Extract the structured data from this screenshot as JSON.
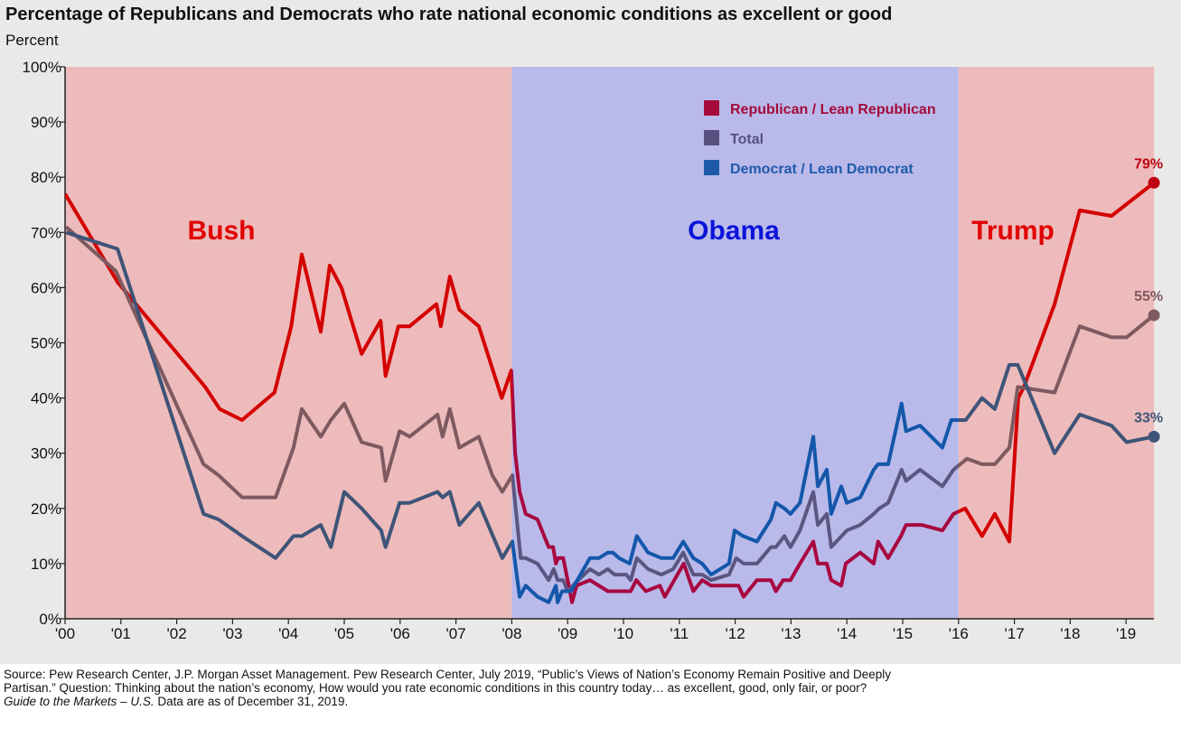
{
  "chart_data": {
    "type": "line",
    "title": "Percentage of Republicans and Democrats who rate national economic conditions as excellent or good",
    "ylabel": "Percent",
    "xlabel": "",
    "ylim": [
      0,
      100
    ],
    "xlim": [
      2000,
      2019.5
    ],
    "y_ticks": [
      "0%",
      "10%",
      "20%",
      "30%",
      "40%",
      "50%",
      "60%",
      "70%",
      "80%",
      "90%",
      "100%"
    ],
    "x_ticks": [
      "'00",
      "'01",
      "'02",
      "'03",
      "'04",
      "'05",
      "'06",
      "'07",
      "'08",
      "'09",
      "'10",
      "'11",
      "'12",
      "'13",
      "'14",
      "'15",
      "'16",
      "'17",
      "'18",
      "'19"
    ],
    "grid": false,
    "legend_placement": "top-center",
    "periods": [
      {
        "label": "Bush",
        "start": 2000,
        "end": 2008,
        "color": "#EDBBBB",
        "label_color": "#E00000"
      },
      {
        "label": "Obama",
        "start": 2008,
        "end": 2016,
        "color": "#B9BAEA",
        "label_color": "#0A14D8"
      },
      {
        "label": "Trump",
        "start": 2016,
        "end": 2019.5,
        "color": "#EDBBBB",
        "label_color": "#E00000"
      }
    ],
    "series": [
      {
        "name": "Republican  / Lean Republican",
        "legend_color": "#A50A3A",
        "color_red_period": "#D40000",
        "color_blue_period": "#A8073F",
        "end_label": "79%",
        "end_label_color": "#C00010",
        "points": [
          [
            2000.0,
            77
          ],
          [
            2000.94,
            61
          ],
          [
            2002.51,
            42
          ],
          [
            2002.77,
            38
          ],
          [
            2003.17,
            36
          ],
          [
            2003.75,
            41
          ],
          [
            2004.05,
            53
          ],
          [
            2004.24,
            66
          ],
          [
            2004.58,
            52
          ],
          [
            2004.74,
            64
          ],
          [
            2004.95,
            60
          ],
          [
            2005.31,
            48
          ],
          [
            2005.65,
            54
          ],
          [
            2005.74,
            44
          ],
          [
            2005.97,
            53
          ],
          [
            2006.17,
            53
          ],
          [
            2006.65,
            57
          ],
          [
            2006.73,
            53
          ],
          [
            2006.89,
            62
          ],
          [
            2007.06,
            56
          ],
          [
            2007.41,
            53
          ],
          [
            2007.82,
            40
          ],
          [
            2007.99,
            45
          ],
          [
            2008.06,
            30
          ],
          [
            2008.14,
            23
          ],
          [
            2008.25,
            19
          ],
          [
            2008.46,
            18
          ],
          [
            2008.66,
            13
          ],
          [
            2008.74,
            13
          ],
          [
            2008.79,
            10
          ],
          [
            2008.83,
            11
          ],
          [
            2008.92,
            11
          ],
          [
            2009.08,
            3
          ],
          [
            2009.16,
            6
          ],
          [
            2009.4,
            7
          ],
          [
            2009.72,
            5
          ],
          [
            2010.13,
            5
          ],
          [
            2010.23,
            7
          ],
          [
            2010.4,
            5
          ],
          [
            2010.65,
            6
          ],
          [
            2010.74,
            4
          ],
          [
            2011.08,
            10
          ],
          [
            2011.25,
            5
          ],
          [
            2011.41,
            7
          ],
          [
            2011.57,
            6
          ],
          [
            2012.06,
            6
          ],
          [
            2012.15,
            4
          ],
          [
            2012.39,
            7
          ],
          [
            2012.64,
            7
          ],
          [
            2012.73,
            5
          ],
          [
            2012.86,
            7
          ],
          [
            2012.99,
            7
          ],
          [
            2013.16,
            10
          ],
          [
            2013.4,
            14
          ],
          [
            2013.48,
            10
          ],
          [
            2013.64,
            10
          ],
          [
            2013.72,
            7
          ],
          [
            2013.9,
            6
          ],
          [
            2013.98,
            10
          ],
          [
            2014.24,
            12
          ],
          [
            2014.48,
            10
          ],
          [
            2014.56,
            14
          ],
          [
            2014.74,
            11
          ],
          [
            2014.97,
            15
          ],
          [
            2015.06,
            17
          ],
          [
            2015.34,
            17
          ],
          [
            2015.71,
            16
          ],
          [
            2015.91,
            19
          ],
          [
            2016.12,
            20
          ],
          [
            2016.42,
            15
          ],
          [
            2016.65,
            19
          ],
          [
            2016.91,
            14
          ],
          [
            2017.07,
            40
          ],
          [
            2017.17,
            42
          ],
          [
            2017.72,
            57
          ],
          [
            2018.17,
            74
          ],
          [
            2018.74,
            73
          ],
          [
            2019.5,
            79
          ]
        ]
      },
      {
        "name": "Total",
        "legend_color": "#57507E",
        "color_red_period": "#7E5A60",
        "color_blue_period": "#5B5580",
        "end_label": "55%",
        "end_label_color": "#7E5A60",
        "points": [
          [
            2000.02,
            71
          ],
          [
            2000.91,
            63
          ],
          [
            2002.48,
            28
          ],
          [
            2002.75,
            26
          ],
          [
            2003.17,
            22
          ],
          [
            2003.77,
            22
          ],
          [
            2004.09,
            31
          ],
          [
            2004.24,
            38
          ],
          [
            2004.58,
            33
          ],
          [
            2004.76,
            36
          ],
          [
            2005.0,
            39
          ],
          [
            2005.31,
            32
          ],
          [
            2005.66,
            31
          ],
          [
            2005.74,
            25
          ],
          [
            2005.99,
            34
          ],
          [
            2006.17,
            33
          ],
          [
            2006.67,
            37
          ],
          [
            2006.76,
            33
          ],
          [
            2006.89,
            38
          ],
          [
            2007.06,
            31
          ],
          [
            2007.41,
            33
          ],
          [
            2007.65,
            26
          ],
          [
            2007.83,
            23
          ],
          [
            2008.01,
            26
          ],
          [
            2008.16,
            11
          ],
          [
            2008.25,
            11
          ],
          [
            2008.46,
            10
          ],
          [
            2008.66,
            7
          ],
          [
            2008.75,
            9
          ],
          [
            2008.82,
            7
          ],
          [
            2008.92,
            7
          ],
          [
            2009.0,
            5
          ],
          [
            2009.19,
            7
          ],
          [
            2009.4,
            9
          ],
          [
            2009.56,
            8
          ],
          [
            2009.72,
            9
          ],
          [
            2009.84,
            8
          ],
          [
            2010.05,
            8
          ],
          [
            2010.13,
            7
          ],
          [
            2010.24,
            11
          ],
          [
            2010.44,
            9
          ],
          [
            2010.68,
            8
          ],
          [
            2010.89,
            9
          ],
          [
            2011.07,
            12
          ],
          [
            2011.25,
            8
          ],
          [
            2011.41,
            8
          ],
          [
            2011.57,
            7
          ],
          [
            2011.89,
            8
          ],
          [
            2012.02,
            11
          ],
          [
            2012.15,
            10
          ],
          [
            2012.39,
            10
          ],
          [
            2012.64,
            13
          ],
          [
            2012.73,
            13
          ],
          [
            2012.88,
            15
          ],
          [
            2012.99,
            13
          ],
          [
            2013.16,
            16
          ],
          [
            2013.4,
            23
          ],
          [
            2013.48,
            17
          ],
          [
            2013.64,
            19
          ],
          [
            2013.72,
            13
          ],
          [
            2014.0,
            16
          ],
          [
            2014.24,
            17
          ],
          [
            2014.48,
            19
          ],
          [
            2014.58,
            20
          ],
          [
            2014.74,
            21
          ],
          [
            2014.98,
            27
          ],
          [
            2015.06,
            25
          ],
          [
            2015.31,
            27
          ],
          [
            2015.71,
            24
          ],
          [
            2015.91,
            27
          ],
          [
            2016.15,
            29
          ],
          [
            2016.42,
            28
          ],
          [
            2016.65,
            28
          ],
          [
            2016.91,
            31
          ],
          [
            2017.06,
            42
          ],
          [
            2017.72,
            41
          ],
          [
            2018.17,
            53
          ],
          [
            2018.74,
            51
          ],
          [
            2019.01,
            51
          ],
          [
            2019.5,
            55
          ]
        ]
      },
      {
        "name": "Democrat / Lean Democrat",
        "legend_color": "#1F5AAA",
        "color_red_period": "#3E5478",
        "color_blue_period": "#1457AA",
        "end_label": "33%",
        "end_label_color": "#3E5478",
        "points": [
          [
            2000.02,
            70
          ],
          [
            2000.94,
            67
          ],
          [
            2002.48,
            19
          ],
          [
            2002.75,
            18
          ],
          [
            2003.17,
            15
          ],
          [
            2003.77,
            11
          ],
          [
            2004.09,
            15
          ],
          [
            2004.24,
            15
          ],
          [
            2004.58,
            17
          ],
          [
            2004.76,
            13
          ],
          [
            2005.0,
            23
          ],
          [
            2005.31,
            20
          ],
          [
            2005.66,
            16
          ],
          [
            2005.74,
            13
          ],
          [
            2005.99,
            21
          ],
          [
            2006.17,
            21
          ],
          [
            2006.67,
            23
          ],
          [
            2006.76,
            22
          ],
          [
            2006.89,
            23
          ],
          [
            2007.06,
            17
          ],
          [
            2007.41,
            21
          ],
          [
            2007.83,
            11
          ],
          [
            2008.01,
            14
          ],
          [
            2008.14,
            4
          ],
          [
            2008.25,
            6
          ],
          [
            2008.46,
            4
          ],
          [
            2008.66,
            3
          ],
          [
            2008.79,
            6
          ],
          [
            2008.82,
            3
          ],
          [
            2008.9,
            5
          ],
          [
            2009.06,
            5
          ],
          [
            2009.4,
            11
          ],
          [
            2009.56,
            11
          ],
          [
            2009.72,
            12
          ],
          [
            2009.81,
            12
          ],
          [
            2009.92,
            11
          ],
          [
            2010.11,
            10
          ],
          [
            2010.24,
            15
          ],
          [
            2010.44,
            12
          ],
          [
            2010.68,
            11
          ],
          [
            2010.89,
            11
          ],
          [
            2011.07,
            14
          ],
          [
            2011.25,
            11
          ],
          [
            2011.41,
            10
          ],
          [
            2011.57,
            8
          ],
          [
            2011.89,
            10
          ],
          [
            2011.99,
            16
          ],
          [
            2012.14,
            15
          ],
          [
            2012.39,
            14
          ],
          [
            2012.64,
            18
          ],
          [
            2012.73,
            21
          ],
          [
            2012.88,
            20
          ],
          [
            2012.99,
            19
          ],
          [
            2013.16,
            21
          ],
          [
            2013.4,
            33
          ],
          [
            2013.48,
            24
          ],
          [
            2013.64,
            27
          ],
          [
            2013.72,
            19
          ],
          [
            2013.9,
            24
          ],
          [
            2014.0,
            21
          ],
          [
            2014.24,
            22
          ],
          [
            2014.48,
            27
          ],
          [
            2014.56,
            28
          ],
          [
            2014.74,
            28
          ],
          [
            2014.98,
            39
          ],
          [
            2015.06,
            34
          ],
          [
            2015.31,
            35
          ],
          [
            2015.71,
            31
          ],
          [
            2015.87,
            36
          ],
          [
            2016.13,
            36
          ],
          [
            2016.42,
            40
          ],
          [
            2016.65,
            38
          ],
          [
            2016.91,
            46
          ],
          [
            2017.06,
            46
          ],
          [
            2017.72,
            30
          ],
          [
            2018.17,
            37
          ],
          [
            2018.74,
            35
          ],
          [
            2019.01,
            32
          ],
          [
            2019.5,
            33
          ]
        ]
      }
    ]
  },
  "footer": {
    "source": "Source: Pew Research Center, J.P. Morgan Asset Management. Pew Research Center, July 2019, “Public’s Views of Nation’s Economy Remain Positive and Deeply Partisan.” Question: Thinking about the nation’s economy, How would you rate economic conditions in this country today… as excellent, good, only fair, or poor?",
    "guide_italic": "Guide to the Markets – U.S.",
    "asof": " Data are as of December 31, 2019."
  }
}
